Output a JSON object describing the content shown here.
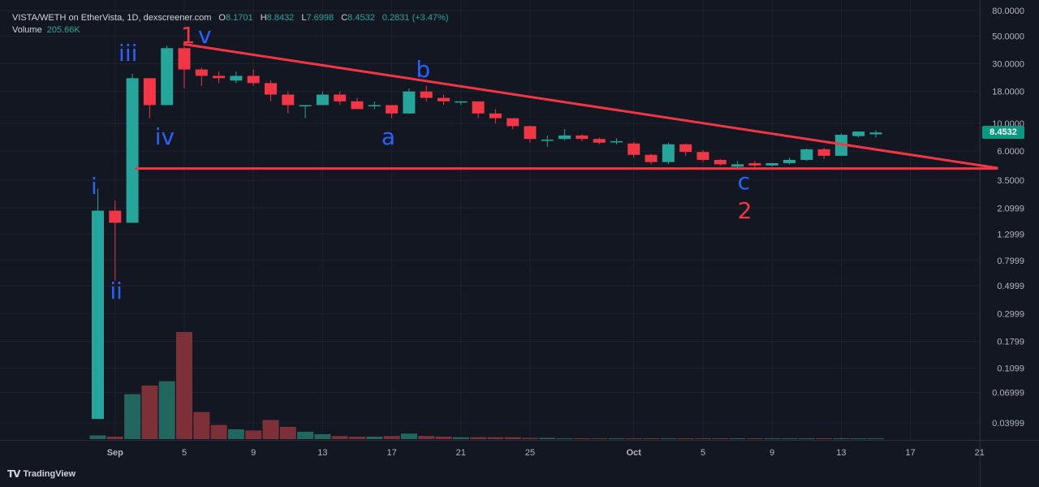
{
  "legend": {
    "symbol": "VISTA/WETH on EtherVista, 1D, dexscreener.com",
    "open_label": "O",
    "open": "8.1701",
    "high_label": "H",
    "high": "8.8432",
    "low_label": "L",
    "low": "7.6998",
    "close_label": "C",
    "close": "8.4532",
    "change": "0.2831 (+3.47%)",
    "volume_label": "Volume",
    "volume": "205.66K"
  },
  "price_tag": "8.4532",
  "brand": {
    "logo": "TV",
    "name": "TradingView"
  },
  "colors": {
    "up": "#26a69a",
    "down": "#f23645",
    "up_volume": "#22675e",
    "down_volume": "#7d3037",
    "trendline": "#f23645",
    "background": "#131722",
    "grid": "#1e222d",
    "wave_blue": "#2962ff",
    "wave_red": "#f23645"
  },
  "chart_data": {
    "type": "candlestick",
    "title": "VISTA/WETH on EtherVista, 1D, dexscreener.com",
    "y_scale": "log",
    "y_ticks": [
      "80.0000",
      "50.0000",
      "30.0000",
      "18.0000",
      "10.0000",
      "6.0000",
      "3.5000",
      "2.0999",
      "1.2999",
      "0.7999",
      "0.4999",
      "0.2999",
      "0.1799",
      "0.1099",
      "0.06999",
      "0.03999"
    ],
    "x_ticks": [
      "Sep",
      "5",
      "9",
      "13",
      "17",
      "21",
      "25",
      "Oct",
      "5",
      "9",
      "13",
      "17",
      "21"
    ],
    "x_tick_days": [
      1,
      5,
      9,
      13,
      17,
      21,
      25,
      31,
      35,
      39,
      43,
      47,
      51
    ],
    "grid": true,
    "candles": [
      {
        "day": 0,
        "o": 0.043,
        "h": 3.0,
        "l": 0.043,
        "c": 2.0,
        "v": 6
      },
      {
        "day": 1,
        "o": 2.0,
        "h": 2.4,
        "l": 0.55,
        "c": 1.6,
        "v": 4
      },
      {
        "day": 2,
        "o": 1.6,
        "h": 25,
        "l": 1.6,
        "c": 23,
        "v": 73
      },
      {
        "day": 3,
        "o": 23,
        "h": 23,
        "l": 11,
        "c": 14,
        "v": 87
      },
      {
        "day": 4,
        "o": 14,
        "h": 42,
        "l": 14,
        "c": 40,
        "v": 94
      },
      {
        "day": 5,
        "o": 40,
        "h": 42,
        "l": 19,
        "c": 27,
        "v": 174
      },
      {
        "day": 6,
        "o": 27,
        "h": 28,
        "l": 20,
        "c": 24,
        "v": 44
      },
      {
        "day": 7,
        "o": 24,
        "h": 26,
        "l": 21,
        "c": 23,
        "v": 23
      },
      {
        "day": 8,
        "o": 22,
        "h": 26,
        "l": 21,
        "c": 24,
        "v": 16
      },
      {
        "day": 9,
        "o": 24,
        "h": 27,
        "l": 20,
        "c": 21,
        "v": 14
      },
      {
        "day": 10,
        "o": 21,
        "h": 22,
        "l": 15,
        "c": 17,
        "v": 31
      },
      {
        "day": 11,
        "o": 17,
        "h": 18,
        "l": 12,
        "c": 14,
        "v": 20
      },
      {
        "day": 12,
        "o": 14,
        "h": 14,
        "l": 11,
        "c": 14,
        "v": 12
      },
      {
        "day": 13,
        "o": 14,
        "h": 18,
        "l": 14,
        "c": 17,
        "v": 8
      },
      {
        "day": 14,
        "o": 17,
        "h": 18,
        "l": 14,
        "c": 15,
        "v": 5
      },
      {
        "day": 15,
        "o": 15,
        "h": 16,
        "l": 13,
        "c": 13,
        "v": 4
      },
      {
        "day": 16,
        "o": 14,
        "h": 15,
        "l": 13,
        "c": 14,
        "v": 4
      },
      {
        "day": 17,
        "o": 14,
        "h": 14,
        "l": 11,
        "c": 12,
        "v": 5
      },
      {
        "day": 18,
        "o": 12,
        "h": 19,
        "l": 12,
        "c": 18,
        "v": 9
      },
      {
        "day": 19,
        "o": 18,
        "h": 20,
        "l": 15,
        "c": 16,
        "v": 5
      },
      {
        "day": 20,
        "o": 16,
        "h": 17,
        "l": 14,
        "c": 15,
        "v": 4
      },
      {
        "day": 21,
        "o": 15,
        "h": 15,
        "l": 14,
        "c": 15,
        "v": 3
      },
      {
        "day": 22,
        "o": 15,
        "h": 15,
        "l": 11,
        "c": 12,
        "v": 3
      },
      {
        "day": 23,
        "o": 12,
        "h": 13,
        "l": 10,
        "c": 11,
        "v": 3
      },
      {
        "day": 24,
        "o": 11,
        "h": 11,
        "l": 9,
        "c": 9.5,
        "v": 3
      },
      {
        "day": 25,
        "o": 9.5,
        "h": 9.6,
        "l": 7,
        "c": 7.5,
        "v": 2
      },
      {
        "day": 26,
        "o": 7.4,
        "h": 8,
        "l": 6.5,
        "c": 7.4,
        "v": 2
      },
      {
        "day": 27,
        "o": 7.5,
        "h": 9,
        "l": 7.3,
        "c": 8,
        "v": 1
      },
      {
        "day": 28,
        "o": 8,
        "h": 8.2,
        "l": 7.2,
        "c": 7.5,
        "v": 1
      },
      {
        "day": 29,
        "o": 7.5,
        "h": 7.7,
        "l": 6.8,
        "c": 7,
        "v": 1
      },
      {
        "day": 30,
        "o": 7.2,
        "h": 7.6,
        "l": 6.8,
        "c": 7.2,
        "v": 1
      },
      {
        "day": 31,
        "o": 6.9,
        "h": 7.1,
        "l": 5.3,
        "c": 5.6,
        "v": 1
      },
      {
        "day": 32,
        "o": 5.6,
        "h": 5.7,
        "l": 4.7,
        "c": 4.9,
        "v": 1
      },
      {
        "day": 33,
        "o": 4.9,
        "h": 7,
        "l": 4.7,
        "c": 6.8,
        "v": 1
      },
      {
        "day": 34,
        "o": 6.8,
        "h": 6.9,
        "l": 5.5,
        "c": 5.9,
        "v": 1
      },
      {
        "day": 35,
        "o": 5.9,
        "h": 6.1,
        "l": 4.9,
        "c": 5.1,
        "v": 1
      },
      {
        "day": 36,
        "o": 5.1,
        "h": 5.2,
        "l": 4.6,
        "c": 4.7,
        "v": 1
      },
      {
        "day": 37,
        "o": 4.5,
        "h": 5,
        "l": 4.3,
        "c": 4.7,
        "v": 1
      },
      {
        "day": 38,
        "o": 4.8,
        "h": 5,
        "l": 4.4,
        "c": 4.6,
        "v": 1
      },
      {
        "day": 39,
        "o": 4.6,
        "h": 4.8,
        "l": 4.5,
        "c": 4.8,
        "v": 1
      },
      {
        "day": 40,
        "o": 4.8,
        "h": 5.3,
        "l": 4.7,
        "c": 5.1,
        "v": 1
      },
      {
        "day": 41,
        "o": 5.1,
        "h": 6.3,
        "l": 5,
        "c": 6.2,
        "v": 1
      },
      {
        "day": 42,
        "o": 6.2,
        "h": 6.4,
        "l": 5.2,
        "c": 5.5,
        "v": 1
      },
      {
        "day": 43,
        "o": 5.5,
        "h": 8.3,
        "l": 5.5,
        "c": 8.1,
        "v": 1
      },
      {
        "day": 44,
        "o": 7.9,
        "h": 8.6,
        "l": 7.7,
        "c": 8.6,
        "v": 1
      },
      {
        "day": 45,
        "o": 8.17,
        "h": 8.84,
        "l": 7.7,
        "c": 8.45,
        "v": 1
      }
    ],
    "trendlines": [
      {
        "from": {
          "day": 5,
          "price": 43
        },
        "to": {
          "day": 52,
          "price": 4.4
        }
      },
      {
        "from": {
          "day": 2.2,
          "price": 4.35
        },
        "to": {
          "day": 52,
          "price": 4.35
        }
      }
    ],
    "wave_labels": [
      {
        "text": "i",
        "day": -0.4,
        "price": 3.1,
        "color": "blue"
      },
      {
        "text": "ii",
        "day": 0.7,
        "price": 0.45,
        "color": "blue"
      },
      {
        "text": "iii",
        "day": 1.2,
        "price": 36,
        "color": "blue"
      },
      {
        "text": "iv",
        "day": 3.3,
        "price": 7.8,
        "color": "blue"
      },
      {
        "text": "1",
        "day": 4.8,
        "price": 50,
        "color": "red"
      },
      {
        "text": "v",
        "day": 5.8,
        "price": 50,
        "color": "blue"
      },
      {
        "text": "a",
        "day": 16.4,
        "price": 7.7,
        "color": "blue"
      },
      {
        "text": "b",
        "day": 18.4,
        "price": 27,
        "color": "blue"
      },
      {
        "text": "c",
        "day": 37,
        "price": 3.4,
        "color": "blue"
      },
      {
        "text": "2",
        "day": 37,
        "price": 2.0,
        "color": "red"
      }
    ]
  }
}
